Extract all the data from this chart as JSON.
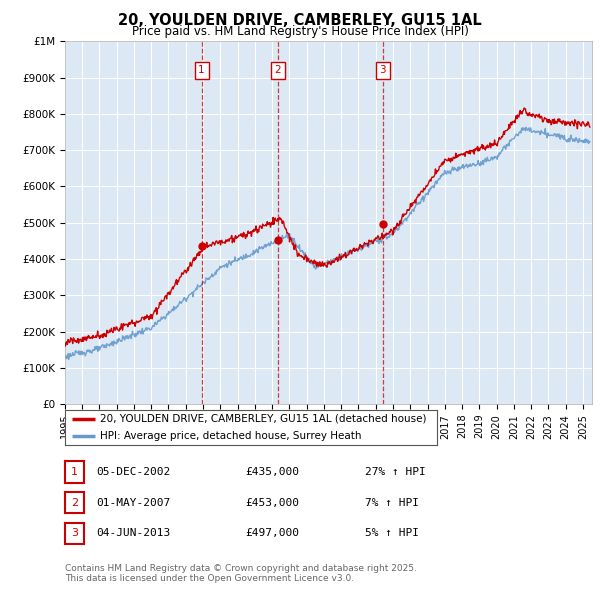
{
  "title": "20, YOULDEN DRIVE, CAMBERLEY, GU15 1AL",
  "subtitle": "Price paid vs. HM Land Registry's House Price Index (HPI)",
  "ylabel_ticks": [
    "£0",
    "£100K",
    "£200K",
    "£300K",
    "£400K",
    "£500K",
    "£600K",
    "£700K",
    "£800K",
    "£900K",
    "£1M"
  ],
  "ytick_vals": [
    0,
    100000,
    200000,
    300000,
    400000,
    500000,
    600000,
    700000,
    800000,
    900000,
    1000000
  ],
  "ylim": [
    0,
    1000000
  ],
  "xlim_start": 1995.0,
  "xlim_end": 2025.5,
  "sale_dates": [
    2002.92,
    2007.33,
    2013.42
  ],
  "sale_prices": [
    435000,
    453000,
    497000
  ],
  "sale_labels": [
    "1",
    "2",
    "3"
  ],
  "legend_line1": "20, YOULDEN DRIVE, CAMBERLEY, GU15 1AL (detached house)",
  "legend_line2": "HPI: Average price, detached house, Surrey Heath",
  "table_rows": [
    {
      "num": "1",
      "date": "05-DEC-2002",
      "price": "£435,000",
      "change": "27% ↑ HPI"
    },
    {
      "num": "2",
      "date": "01-MAY-2007",
      "price": "£453,000",
      "change": "7% ↑ HPI"
    },
    {
      "num": "3",
      "date": "04-JUN-2013",
      "price": "£497,000",
      "change": "5% ↑ HPI"
    }
  ],
  "footer": "Contains HM Land Registry data © Crown copyright and database right 2025.\nThis data is licensed under the Open Government Licence v3.0.",
  "red_color": "#cc0000",
  "blue_color": "#6699cc",
  "fill_color": "#dce9f5",
  "grid_color": "#cccccc",
  "bg_color": "#ffffff",
  "chart_bg": "#dce9f5"
}
